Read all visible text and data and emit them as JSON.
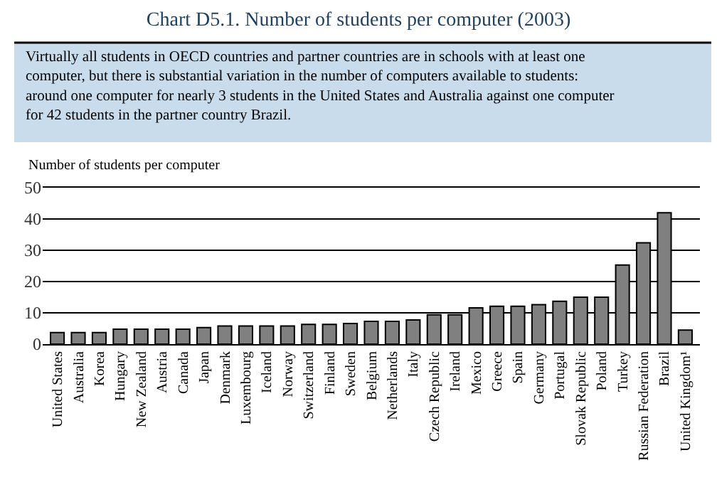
{
  "chart_data": {
    "type": "bar",
    "title": "Chart D5.1. Number of students per computer (2003)",
    "subtitle": "Virtually all students in OECD countries and partner countries are in schools with at least one computer, but there is substantial variation in the number of computers available to students: around one computer for nearly 3 students in the United States and Australia against one computer for 42 students in the partner country Brazil.",
    "ylabel": "Number of students per computer",
    "categories": [
      "United States",
      "Australia",
      "Korea",
      "Hungary",
      "New Zealand",
      "Austria",
      "Canada",
      "Japan",
      "Denmark",
      "Luxembourg",
      "Iceland",
      "Norway",
      "Switzerland",
      "Finland",
      "Sweden",
      "Belgium",
      "Netherlands",
      "Italy",
      "Czech Republic",
      "Ireland",
      "Mexico",
      "Greece",
      "Spain",
      "Germany",
      "Portugal",
      "Slovak Republic",
      "Poland",
      "Turkey",
      "Russian Federation",
      "Brazil",
      "United Kingdom¹"
    ],
    "values": [
      3.7,
      3.7,
      3.7,
      4.8,
      4.8,
      4.8,
      4.8,
      5.3,
      5.8,
      5.8,
      5.8,
      5.8,
      6.3,
      6.3,
      6.6,
      7.3,
      7.3,
      7.7,
      9.4,
      9.4,
      11.6,
      12.1,
      12.1,
      12.6,
      13.7,
      15,
      15,
      25.3,
      32.4,
      42,
      4.5
    ],
    "color": "#808080",
    "ylim": [
      0,
      50
    ],
    "yticks": [
      0,
      10,
      20,
      30,
      40,
      50
    ],
    "grid": "y"
  }
}
